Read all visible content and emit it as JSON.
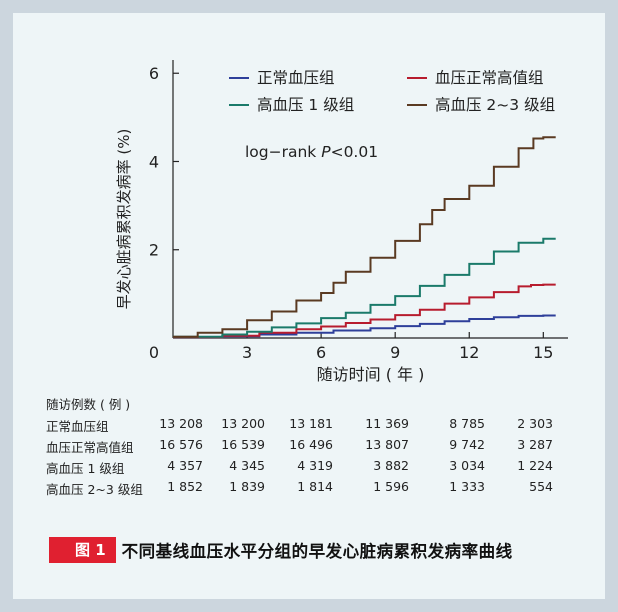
{
  "chart_data": {
    "type": "line",
    "step": true,
    "xlabel": "随访时间 ( 年 )",
    "ylabel": "早发心脏病累积发病率 (%)",
    "xticks": [
      0,
      3,
      6,
      9,
      12,
      15
    ],
    "yticks": [
      0,
      2,
      4,
      6
    ],
    "xlim": [
      0,
      16
    ],
    "ylim": [
      0,
      6.3
    ],
    "annotation_prefix": "log−rank ",
    "annotation_italic": "P",
    "annotation_suffix": "<0.01",
    "legend_position": "top",
    "series": [
      {
        "name": "正常血压组",
        "color": "#2e3f9a",
        "points": [
          [
            0,
            0.02
          ],
          [
            2,
            0.04
          ],
          [
            3.5,
            0.08
          ],
          [
            5,
            0.12
          ],
          [
            6.5,
            0.17
          ],
          [
            8,
            0.22
          ],
          [
            9,
            0.27
          ],
          [
            10,
            0.32
          ],
          [
            11,
            0.38
          ],
          [
            12,
            0.43
          ],
          [
            13,
            0.47
          ],
          [
            14,
            0.5
          ],
          [
            15,
            0.51
          ],
          [
            15.5,
            0.51
          ]
        ]
      },
      {
        "name": "血压正常高值组",
        "color": "#b71c2e",
        "points": [
          [
            0,
            0.02
          ],
          [
            2,
            0.05
          ],
          [
            3.5,
            0.12
          ],
          [
            5,
            0.2
          ],
          [
            6,
            0.26
          ],
          [
            7,
            0.34
          ],
          [
            8,
            0.42
          ],
          [
            9,
            0.52
          ],
          [
            10,
            0.64
          ],
          [
            11,
            0.78
          ],
          [
            12,
            0.92
          ],
          [
            13,
            1.04
          ],
          [
            14,
            1.17
          ],
          [
            14.5,
            1.2
          ],
          [
            15,
            1.21
          ],
          [
            15.5,
            1.21
          ]
        ]
      },
      {
        "name": "高血压 1 级组",
        "color": "#1a7a6a",
        "points": [
          [
            0,
            0.03
          ],
          [
            2,
            0.08
          ],
          [
            3,
            0.14
          ],
          [
            4,
            0.24
          ],
          [
            5,
            0.33
          ],
          [
            6,
            0.45
          ],
          [
            7,
            0.57
          ],
          [
            8,
            0.75
          ],
          [
            9,
            0.95
          ],
          [
            10,
            1.18
          ],
          [
            11,
            1.43
          ],
          [
            12,
            1.68
          ],
          [
            13,
            1.96
          ],
          [
            14,
            2.16
          ],
          [
            15,
            2.25
          ],
          [
            15.5,
            2.25
          ]
        ]
      },
      {
        "name": "高血压 2~3 级组",
        "color": "#5a3a22",
        "points": [
          [
            0,
            0.03
          ],
          [
            1,
            0.12
          ],
          [
            2,
            0.2
          ],
          [
            3,
            0.4
          ],
          [
            4,
            0.6
          ],
          [
            5,
            0.85
          ],
          [
            6,
            1.02
          ],
          [
            6.5,
            1.25
          ],
          [
            7,
            1.5
          ],
          [
            8,
            1.82
          ],
          [
            9,
            2.2
          ],
          [
            10,
            2.58
          ],
          [
            10.5,
            2.9
          ],
          [
            11,
            3.15
          ],
          [
            12,
            3.45
          ],
          [
            13,
            3.88
          ],
          [
            14,
            4.3
          ],
          [
            14.6,
            4.52
          ],
          [
            15,
            4.55
          ],
          [
            15.5,
            4.55
          ]
        ]
      }
    ],
    "risk_table": {
      "header": "随访例数 ( 例 )",
      "rows": [
        {
          "label": "正常血压组",
          "values": [
            "13 208",
            "13 200",
            "13 181",
            "11 369",
            "8 785",
            "2 303"
          ]
        },
        {
          "label": "血压正常高值组",
          "values": [
            "16 576",
            "16 539",
            "16 496",
            "13 807",
            "9 742",
            "3 287"
          ]
        },
        {
          "label": "高血压 1 级组",
          "values": [
            "4 357",
            "4 345",
            "4 319",
            "3 882",
            "3 034",
            "1 224"
          ]
        },
        {
          "label": "高血压 2~3 级组",
          "values": [
            "1 852",
            "1 839",
            "1 814",
            "1 596",
            "1 333",
            "554"
          ]
        }
      ]
    }
  },
  "caption": {
    "tag": "图 1",
    "text": "不同基线血压水平分组的早发心脏病累积发病率曲线"
  }
}
